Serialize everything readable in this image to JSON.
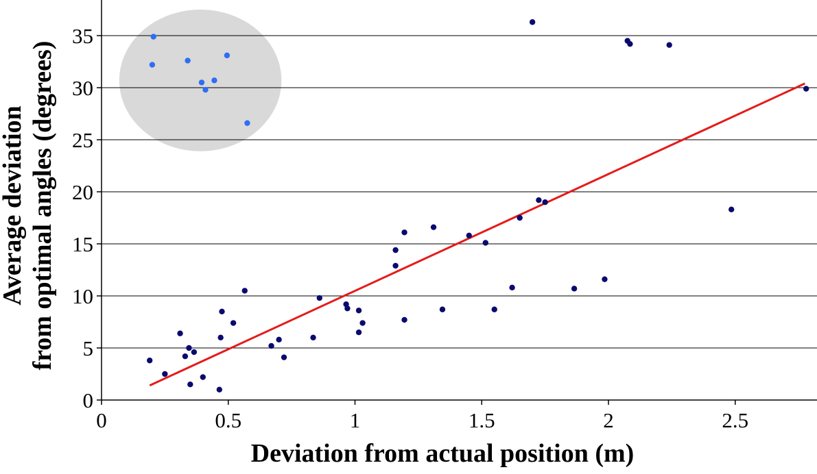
{
  "chart_data": {
    "type": "scatter",
    "title": "",
    "xlabel": "Deviation from actual position (m)",
    "ylabel_lines": [
      "Average deviation",
      "from optimal angles (degrees)"
    ],
    "xlim": [
      0,
      2.8
    ],
    "ylim": [
      0,
      37
    ],
    "x_ticks": [
      0,
      0.5,
      1,
      1.5,
      2,
      2.5
    ],
    "x_tick_labels": [
      "0",
      "0.5",
      "1",
      "1.5",
      "2",
      "2.5"
    ],
    "y_ticks": [
      0,
      5,
      10,
      15,
      20,
      25,
      30,
      35
    ],
    "y_tick_labels": [
      "0",
      "5",
      "10",
      "15",
      "20",
      "25",
      "30",
      "35"
    ],
    "grid": "horizontal",
    "legend": "none",
    "colors": {
      "main_points": "#0a0a6e",
      "highlight_points": "#2f6ef2",
      "trend_line": "#e51b1b",
      "highlight_ellipse": "#d9d9d9",
      "grid": "#000000"
    },
    "series": [
      {
        "role": "main",
        "points": [
          [
            0.19,
            3.8
          ],
          [
            0.25,
            2.5
          ],
          [
            0.31,
            6.4
          ],
          [
            0.33,
            4.2
          ],
          [
            0.345,
            5.0
          ],
          [
            0.35,
            1.5
          ],
          [
            0.365,
            4.6
          ],
          [
            0.4,
            2.2
          ],
          [
            0.465,
            1.0
          ],
          [
            0.47,
            6.0
          ],
          [
            0.475,
            8.5
          ],
          [
            0.52,
            7.4
          ],
          [
            0.565,
            10.5
          ],
          [
            0.67,
            5.2
          ],
          [
            0.7,
            5.8
          ],
          [
            0.72,
            4.1
          ],
          [
            0.835,
            6.0
          ],
          [
            0.86,
            9.8
          ],
          [
            0.965,
            9.2
          ],
          [
            0.97,
            8.8
          ],
          [
            1.015,
            6.5
          ],
          [
            1.015,
            8.6
          ],
          [
            1.03,
            7.4
          ],
          [
            1.16,
            14.4
          ],
          [
            1.16,
            12.9
          ],
          [
            1.195,
            16.1
          ],
          [
            1.195,
            7.7
          ],
          [
            1.31,
            16.6
          ],
          [
            1.345,
            8.7
          ],
          [
            1.45,
            15.8
          ],
          [
            1.515,
            15.1
          ],
          [
            1.55,
            8.7
          ],
          [
            1.62,
            10.8
          ],
          [
            1.65,
            17.5
          ],
          [
            1.7,
            36.3
          ],
          [
            1.725,
            19.2
          ],
          [
            1.75,
            19.0
          ],
          [
            1.865,
            10.7
          ],
          [
            1.985,
            11.6
          ],
          [
            2.075,
            34.5
          ],
          [
            2.085,
            34.2
          ],
          [
            2.24,
            34.1
          ],
          [
            2.485,
            18.3
          ],
          [
            2.78,
            29.9
          ]
        ]
      },
      {
        "role": "highlighted",
        "points": [
          [
            0.2,
            32.2
          ],
          [
            0.205,
            34.9
          ],
          [
            0.34,
            32.6
          ],
          [
            0.395,
            30.5
          ],
          [
            0.41,
            29.8
          ],
          [
            0.445,
            30.7
          ],
          [
            0.495,
            33.1
          ],
          [
            0.575,
            26.6
          ]
        ]
      }
    ],
    "trend_line": {
      "x": [
        0.19,
        2.775
      ],
      "y": [
        1.4,
        30.4
      ]
    },
    "highlight_region": {
      "cx": 0.39,
      "cy": 30.7,
      "rx": 0.32,
      "ry": 6.8
    }
  }
}
